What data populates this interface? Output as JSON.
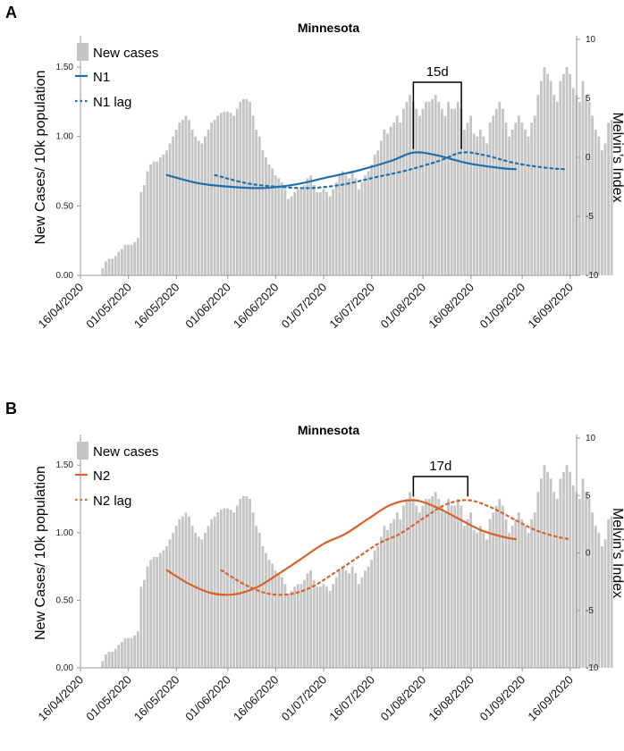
{
  "colors": {
    "bar": "#c4c4c4",
    "n1": "#1f6fae",
    "n2": "#d9622b",
    "axis": "#9a9a9a"
  },
  "chart_data": [
    {
      "panel": "A",
      "type": "bar",
      "title": "Minnesota",
      "ylabel": "New Cases/ 10k population",
      "y2label": "Melvin’s Index",
      "ylim": [
        0,
        1.7
      ],
      "y2lim": [
        -10,
        10
      ],
      "yticks": [
        "0.00",
        "0.50",
        "1.00",
        "1.50"
      ],
      "y2ticks": [
        "-10",
        "-5",
        "0",
        "5",
        "10"
      ],
      "xticks": [
        "16/04/2020",
        "01/05/2020",
        "16/05/2020",
        "01/06/2020",
        "16/06/2020",
        "01/07/2020",
        "16/07/2020",
        "01/08/2020",
        "16/08/2020",
        "01/09/2020",
        "16/09/2020"
      ],
      "x_start": "2020-04-16",
      "x_end": "2020-09-18",
      "legend": [
        "New cases",
        "N1",
        "N1 lag"
      ],
      "lag_label": "15d",
      "bars": [
        0.05,
        0.1,
        0.12,
        0.12,
        0.14,
        0.17,
        0.19,
        0.22,
        0.22,
        0.22,
        0.24,
        0.27,
        0.6,
        0.65,
        0.75,
        0.8,
        0.82,
        0.82,
        0.85,
        0.87,
        0.9,
        0.95,
        1.0,
        1.05,
        1.1,
        1.12,
        1.15,
        1.12,
        1.05,
        1.0,
        0.97,
        0.95,
        1.0,
        1.05,
        1.1,
        1.12,
        1.15,
        1.17,
        1.18,
        1.18,
        1.17,
        1.15,
        1.2,
        1.25,
        1.27,
        1.27,
        1.25,
        1.15,
        1.05,
        1.0,
        0.9,
        0.85,
        0.8,
        0.77,
        0.72,
        0.7,
        0.67,
        0.62,
        0.55,
        0.57,
        0.6,
        0.62,
        0.62,
        0.65,
        0.7,
        0.72,
        0.65,
        0.6,
        0.6,
        0.62,
        0.6,
        0.57,
        0.62,
        0.67,
        0.72,
        0.75,
        0.72,
        0.7,
        0.75,
        0.7,
        0.62,
        0.67,
        0.72,
        0.75,
        0.8,
        0.87,
        0.9,
        0.97,
        1.05,
        1.02,
        1.07,
        1.1,
        1.15,
        1.1,
        1.2,
        1.25,
        1.3,
        1.25,
        1.2,
        1.15,
        1.2,
        1.25,
        1.25,
        1.27,
        1.3,
        1.25,
        1.2,
        1.15,
        1.25,
        1.2,
        1.2,
        1.25,
        1.2,
        1.05,
        1.1,
        1.15,
        1.02,
        1.0,
        1.05,
        1.0,
        0.95,
        1.1,
        1.15,
        1.2,
        1.25,
        1.2,
        1.1,
        1.0,
        1.05,
        1.1,
        1.15,
        1.1,
        1.05,
        1.0,
        1.1,
        1.15,
        1.3,
        1.4,
        1.5,
        1.45,
        1.4,
        1.3,
        1.25,
        1.4,
        1.45,
        1.5,
        1.45,
        1.35,
        1.3,
        1.25,
        1.4,
        1.3,
        1.25,
        1.15,
        1.05,
        1.0,
        0.9,
        0.95,
        1.1,
        1.12
      ],
      "series": [
        {
          "name": "N1",
          "style": "solid",
          "x": [
            "2020-05-13",
            "2020-05-23",
            "2020-06-02",
            "2020-06-12",
            "2020-06-22",
            "2020-07-02",
            "2020-07-12",
            "2020-07-22",
            "2020-07-29",
            "2020-08-05",
            "2020-08-15",
            "2020-08-25",
            "2020-08-30"
          ],
          "y": [
            -1.5,
            -2.2,
            -2.5,
            -2.6,
            -2.3,
            -1.7,
            -1.1,
            -0.3,
            0.4,
            0.2,
            -0.5,
            -0.9,
            -1.0
          ]
        },
        {
          "name": "N1 lag",
          "style": "dotted",
          "x": [
            "2020-05-28",
            "2020-06-07",
            "2020-06-17",
            "2020-06-27",
            "2020-07-07",
            "2020-07-17",
            "2020-07-27",
            "2020-08-06",
            "2020-08-13",
            "2020-08-20",
            "2020-08-30",
            "2020-09-09",
            "2020-09-14"
          ],
          "y": [
            -1.5,
            -2.2,
            -2.5,
            -2.6,
            -2.3,
            -1.7,
            -1.1,
            -0.3,
            0.4,
            0.2,
            -0.5,
            -0.9,
            -1.0
          ]
        }
      ]
    },
    {
      "panel": "B",
      "type": "bar",
      "title": "Minnesota",
      "ylabel": "New Cases/ 10k population",
      "y2label": "Melvin’s Index",
      "ylim": [
        0,
        1.7
      ],
      "y2lim": [
        -10,
        10
      ],
      "yticks": [
        "0.00",
        "0.50",
        "1.00",
        "1.50"
      ],
      "y2ticks": [
        "-10",
        "-5",
        "0",
        "5",
        "10"
      ],
      "xticks": [
        "16/04/2020",
        "01/05/2020",
        "16/05/2020",
        "01/06/2020",
        "16/06/2020",
        "01/07/2020",
        "16/07/2020",
        "01/08/2020",
        "16/08/2020",
        "01/09/2020",
        "16/09/2020"
      ],
      "x_start": "2020-04-16",
      "x_end": "2020-09-18",
      "legend": [
        "New cases",
        "N2",
        "N2 lag"
      ],
      "lag_label": "17d",
      "bars": [
        0.05,
        0.1,
        0.12,
        0.12,
        0.14,
        0.17,
        0.19,
        0.22,
        0.22,
        0.22,
        0.24,
        0.27,
        0.6,
        0.65,
        0.75,
        0.8,
        0.82,
        0.82,
        0.85,
        0.87,
        0.9,
        0.95,
        1.0,
        1.05,
        1.1,
        1.12,
        1.15,
        1.12,
        1.05,
        1.0,
        0.97,
        0.95,
        1.0,
        1.05,
        1.1,
        1.12,
        1.15,
        1.17,
        1.18,
        1.18,
        1.17,
        1.15,
        1.2,
        1.25,
        1.27,
        1.27,
        1.25,
        1.15,
        1.05,
        1.0,
        0.9,
        0.85,
        0.8,
        0.77,
        0.72,
        0.7,
        0.67,
        0.62,
        0.55,
        0.57,
        0.6,
        0.62,
        0.62,
        0.65,
        0.7,
        0.72,
        0.65,
        0.6,
        0.6,
        0.62,
        0.6,
        0.57,
        0.62,
        0.67,
        0.72,
        0.75,
        0.72,
        0.7,
        0.75,
        0.7,
        0.62,
        0.67,
        0.72,
        0.75,
        0.8,
        0.87,
        0.9,
        0.97,
        1.05,
        1.02,
        1.07,
        1.1,
        1.15,
        1.1,
        1.2,
        1.25,
        1.3,
        1.25,
        1.2,
        1.15,
        1.2,
        1.25,
        1.25,
        1.27,
        1.3,
        1.25,
        1.2,
        1.15,
        1.25,
        1.2,
        1.2,
        1.25,
        1.2,
        1.05,
        1.1,
        1.15,
        1.02,
        1.0,
        1.05,
        1.0,
        0.95,
        1.1,
        1.15,
        1.2,
        1.25,
        1.2,
        1.1,
        1.0,
        1.05,
        1.1,
        1.15,
        1.1,
        1.05,
        1.0,
        1.1,
        1.15,
        1.3,
        1.4,
        1.5,
        1.45,
        1.4,
        1.3,
        1.25,
        1.4,
        1.45,
        1.5,
        1.45,
        1.35,
        1.3,
        1.25,
        1.4,
        1.3,
        1.25,
        1.15,
        1.05,
        1.0,
        0.9,
        0.95,
        1.1,
        1.12
      ],
      "series": [
        {
          "name": "N2",
          "style": "solid",
          "x": [
            "2020-05-13",
            "2020-05-20",
            "2020-05-27",
            "2020-06-03",
            "2020-06-10",
            "2020-06-17",
            "2020-06-24",
            "2020-07-01",
            "2020-07-08",
            "2020-07-15",
            "2020-07-22",
            "2020-07-29",
            "2020-08-05",
            "2020-08-12",
            "2020-08-19",
            "2020-08-26",
            "2020-08-30"
          ],
          "y": [
            -1.5,
            -2.7,
            -3.5,
            -3.6,
            -3.0,
            -1.8,
            -0.5,
            0.8,
            1.7,
            3.0,
            4.2,
            4.6,
            4.0,
            3.0,
            2.0,
            1.4,
            1.2
          ]
        },
        {
          "name": "N2 lag",
          "style": "dotted",
          "x": [
            "2020-05-30",
            "2020-06-06",
            "2020-06-13",
            "2020-06-20",
            "2020-06-27",
            "2020-07-04",
            "2020-07-11",
            "2020-07-18",
            "2020-07-25",
            "2020-08-01",
            "2020-08-08",
            "2020-08-15",
            "2020-08-22",
            "2020-08-29",
            "2020-09-05",
            "2020-09-12",
            "2020-09-16"
          ],
          "y": [
            -1.5,
            -2.7,
            -3.5,
            -3.6,
            -3.0,
            -1.8,
            -0.5,
            0.8,
            1.7,
            3.0,
            4.2,
            4.6,
            4.0,
            3.0,
            2.0,
            1.4,
            1.2
          ]
        }
      ]
    }
  ]
}
